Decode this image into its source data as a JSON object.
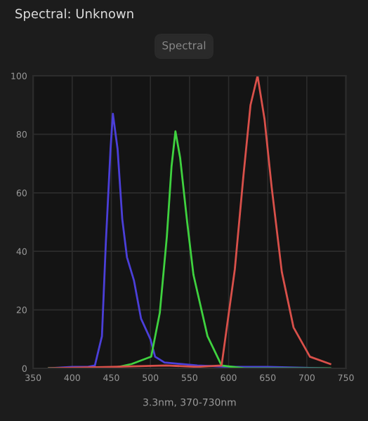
{
  "chart_data": {
    "type": "line",
    "title": "Spectral: Unknown",
    "subtitle": "Spectral",
    "xlabel": "3.3nm, 370-730nm",
    "xlim": [
      350,
      750
    ],
    "ylim": [
      0,
      100
    ],
    "xticks": [
      350,
      400,
      450,
      500,
      550,
      600,
      650,
      700,
      750
    ],
    "yticks": [
      0,
      20,
      40,
      60,
      80,
      100
    ],
    "grid": true,
    "marker": "none",
    "line_style": "solid",
    "series": [
      {
        "color": "#4b3fd9",
        "x": [
          370,
          400,
          420,
          429,
          438,
          443,
          449,
          452,
          458,
          464,
          470,
          479,
          488,
          500,
          506,
          518,
          560,
          600,
          650,
          730
        ],
        "values": [
          0,
          0.5,
          0.5,
          1,
          11,
          43,
          75,
          87,
          75,
          51,
          38,
          30,
          17,
          10,
          4,
          2,
          1,
          0.5,
          0.5,
          0
        ]
      },
      {
        "color": "#3fd23f",
        "x": [
          370,
          450,
          476,
          501,
          512,
          521,
          527,
          532,
          538,
          547,
          555,
          573,
          591,
          620,
          730
        ],
        "values": [
          0,
          0,
          1.5,
          4,
          19,
          45,
          69,
          81,
          72,
          50,
          32,
          11,
          1,
          0,
          0
        ]
      },
      {
        "color": "#d9504a",
        "x": [
          370,
          450,
          520,
          560,
          591,
          608,
          619,
          628,
          637,
          646,
          655,
          668,
          683,
          704,
          730
        ],
        "values": [
          0,
          0.5,
          1,
          0.5,
          1,
          34,
          66,
          90,
          100,
          85,
          62,
          33,
          14,
          4,
          1.5
        ]
      }
    ]
  }
}
